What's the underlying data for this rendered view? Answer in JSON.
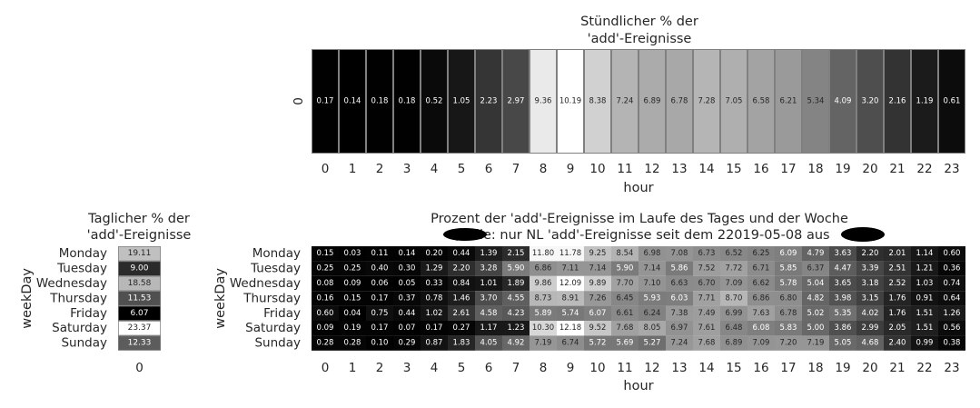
{
  "chart_data": [
    {
      "type": "heatmap",
      "title_lines": [
        "Stündlicher % der",
        "'add'-Ereignisse"
      ],
      "xlabel": "hour",
      "ylabel": "",
      "x": [
        "0",
        "1",
        "2",
        "3",
        "4",
        "5",
        "6",
        "7",
        "8",
        "9",
        "10",
        "11",
        "12",
        "13",
        "14",
        "15",
        "16",
        "17",
        "18",
        "19",
        "20",
        "21",
        "22",
        "23"
      ],
      "y": [
        "0"
      ],
      "values": [
        [
          0.17,
          0.14,
          0.18,
          0.18,
          0.52,
          1.05,
          2.23,
          2.97,
          9.36,
          10.19,
          8.38,
          7.24,
          6.89,
          6.78,
          7.28,
          7.05,
          6.58,
          6.21,
          5.34,
          4.09,
          3.2,
          2.16,
          1.19,
          0.61
        ]
      ],
      "value_labels": [
        [
          "0.17",
          "0.14",
          "0.18",
          "0.18",
          "0.52",
          "1.05",
          "2.23",
          "2.97",
          "9.36",
          "10.19",
          "8.38",
          "7.24",
          "6.89",
          "6.78",
          "7.28",
          "7.05",
          "6.58",
          "6.21",
          "5.34",
          "4.09",
          "3.20",
          "2.16",
          "1.19",
          "0.61"
        ]
      ],
      "colormap": "gray",
      "cell_border": "#808080"
    },
    {
      "type": "heatmap",
      "title_lines": [
        "Taglicher % der",
        "'add'-Ereignisse"
      ],
      "xlabel": "",
      "ylabel": "weekDay",
      "x": [
        "0"
      ],
      "y": [
        "Monday",
        "Tuesday",
        "Wednesday",
        "Thursday",
        "Friday",
        "Saturday",
        "Sunday"
      ],
      "values": [
        [
          19.11
        ],
        [
          9.0
        ],
        [
          18.58
        ],
        [
          11.53
        ],
        [
          6.07
        ],
        [
          23.37
        ],
        [
          12.33
        ]
      ],
      "value_labels": [
        [
          "19.11"
        ],
        [
          "9.00"
        ],
        [
          "18.58"
        ],
        [
          "11.53"
        ],
        [
          "6.07"
        ],
        [
          "23.37"
        ],
        [
          "12.33"
        ]
      ],
      "colormap": "gray",
      "cell_border": "#808080"
    },
    {
      "type": "heatmap",
      "title_lines": [
        "Prozent der 'add'-Ereignisse im Laufe des Tages und der Woche",
        "Quelle: nur NL 'add'-Ereignisse seit dem 22019-05-08 aus"
      ],
      "xlabel": "hour",
      "ylabel": "weekDay",
      "x": [
        "0",
        "1",
        "2",
        "3",
        "4",
        "5",
        "6",
        "7",
        "8",
        "9",
        "10",
        "11",
        "12",
        "13",
        "14",
        "15",
        "16",
        "17",
        "18",
        "19",
        "20",
        "21",
        "22",
        "23"
      ],
      "y": [
        "Monday",
        "Tuesday",
        "Wednesday",
        "Thursday",
        "Friday",
        "Saturday",
        "Sunday"
      ],
      "values": [
        [
          0.15,
          0.03,
          0.11,
          0.14,
          0.2,
          0.44,
          1.39,
          2.15,
          11.8,
          11.78,
          9.25,
          8.54,
          6.98,
          7.08,
          6.73,
          6.52,
          6.25,
          6.09,
          4.79,
          3.63,
          2.2,
          2.01,
          1.14,
          0.6
        ],
        [
          0.25,
          0.25,
          0.4,
          0.3,
          1.29,
          2.2,
          3.28,
          5.9,
          6.86,
          7.11,
          7.14,
          5.9,
          7.14,
          5.86,
          7.52,
          7.72,
          6.71,
          5.85,
          6.37,
          4.47,
          3.39,
          2.51,
          1.21,
          0.36
        ],
        [
          0.08,
          0.09,
          0.06,
          0.05,
          0.33,
          0.84,
          1.01,
          1.89,
          9.86,
          12.09,
          9.89,
          7.7,
          7.1,
          6.63,
          6.7,
          7.09,
          6.62,
          5.78,
          5.04,
          3.65,
          3.18,
          2.52,
          1.03,
          0.74
        ],
        [
          0.16,
          0.15,
          0.17,
          0.37,
          0.78,
          1.46,
          3.7,
          4.55,
          8.73,
          8.91,
          7.26,
          6.45,
          5.93,
          6.03,
          7.71,
          8.7,
          6.86,
          6.8,
          4.82,
          3.98,
          3.15,
          1.76,
          0.91,
          0.64
        ],
        [
          0.6,
          0.04,
          0.75,
          0.44,
          1.02,
          2.61,
          4.58,
          4.23,
          5.89,
          5.74,
          6.07,
          6.61,
          6.24,
          7.38,
          7.49,
          6.99,
          7.63,
          6.78,
          5.02,
          5.35,
          4.02,
          1.76,
          1.51,
          1.26
        ],
        [
          0.09,
          0.19,
          0.17,
          0.07,
          0.17,
          0.27,
          1.17,
          1.23,
          10.3,
          12.18,
          9.52,
          7.68,
          8.05,
          6.97,
          7.61,
          6.48,
          6.08,
          5.83,
          5.0,
          3.86,
          2.99,
          2.05,
          1.51,
          0.56
        ],
        [
          0.28,
          0.28,
          0.1,
          0.29,
          0.87,
          1.83,
          4.05,
          4.92,
          7.19,
          6.74,
          5.72,
          5.69,
          5.27,
          7.24,
          7.68,
          6.89,
          7.09,
          7.2,
          7.19,
          5.05,
          4.68,
          2.4,
          0.99,
          0.38
        ]
      ],
      "value_labels": [
        [
          "0.15",
          "0.03",
          "0.11",
          "0.14",
          "0.20",
          "0.44",
          "1.39",
          "2.15",
          "11.80",
          "11.78",
          "9.25",
          "8.54",
          "6.98",
          "7.08",
          "6.73",
          "6.52",
          "6.25",
          "6.09",
          "4.79",
          "3.63",
          "2.20",
          "2.01",
          "1.14",
          "0.60"
        ],
        [
          "0.25",
          "0.25",
          "0.40",
          "0.30",
          "1.29",
          "2.20",
          "3.28",
          "5.90",
          "6.86",
          "7.11",
          "7.14",
          "5.90",
          "7.14",
          "5.86",
          "7.52",
          "7.72",
          "6.71",
          "5.85",
          "6.37",
          "4.47",
          "3.39",
          "2.51",
          "1.21",
          "0.36"
        ],
        [
          "0.08",
          "0.09",
          "0.06",
          "0.05",
          "0.33",
          "0.84",
          "1.01",
          "1.89",
          "9.86",
          "12.09",
          "9.89",
          "7.70",
          "7.10",
          "6.63",
          "6.70",
          "7.09",
          "6.62",
          "5.78",
          "5.04",
          "3.65",
          "3.18",
          "2.52",
          "1.03",
          "0.74"
        ],
        [
          "0.16",
          "0.15",
          "0.17",
          "0.37",
          "0.78",
          "1.46",
          "3.70",
          "4.55",
          "8.73",
          "8.91",
          "7.26",
          "6.45",
          "5.93",
          "6.03",
          "7.71",
          "8.70",
          "6.86",
          "6.80",
          "4.82",
          "3.98",
          "3.15",
          "1.76",
          "0.91",
          "0.64"
        ],
        [
          "0.60",
          "0.04",
          "0.75",
          "0.44",
          "1.02",
          "2.61",
          "4.58",
          "4.23",
          "5.89",
          "5.74",
          "6.07",
          "6.61",
          "6.24",
          "7.38",
          "7.49",
          "6.99",
          "7.63",
          "6.78",
          "5.02",
          "5.35",
          "4.02",
          "1.76",
          "1.51",
          "1.26"
        ],
        [
          "0.09",
          "0.19",
          "0.17",
          "0.07",
          "0.17",
          "0.27",
          "1.17",
          "1.23",
          "10.30",
          "12.18",
          "9.52",
          "7.68",
          "8.05",
          "6.97",
          "7.61",
          "6.48",
          "6.08",
          "5.83",
          "5.00",
          "3.86",
          "2.99",
          "2.05",
          "1.51",
          "0.56"
        ],
        [
          "0.28",
          "0.28",
          "0.10",
          "0.29",
          "0.87",
          "1.83",
          "4.05",
          "4.92",
          "7.19",
          "6.74",
          "5.72",
          "5.69",
          "5.27",
          "7.24",
          "7.68",
          "6.89",
          "7.09",
          "7.20",
          "7.19",
          "5.05",
          "4.68",
          "2.40",
          "0.99",
          "0.38"
        ]
      ],
      "colormap": "gray",
      "cell_border": "none",
      "redactions": 2
    }
  ]
}
